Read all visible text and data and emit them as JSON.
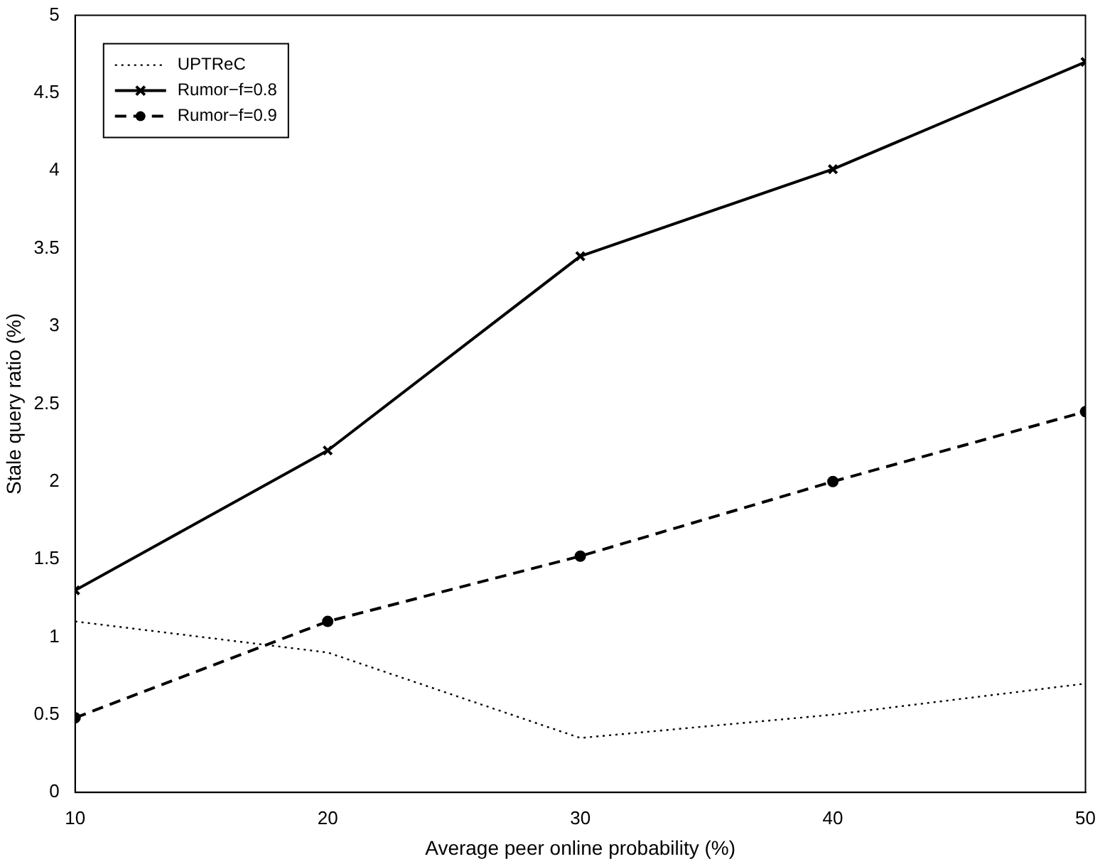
{
  "chart_data": {
    "type": "line",
    "xlabel": "Average peer online probability (%)",
    "ylabel": "Stale query ratio (%)",
    "x": [
      10,
      20,
      30,
      40,
      50
    ],
    "series": [
      {
        "name": "UPTReC",
        "color": "#000000",
        "values": [
          1.1,
          0.9,
          0.35,
          0.5,
          0.7
        ],
        "marker": "none",
        "line_style": "dotted"
      },
      {
        "name": "Rumor−f=0.8",
        "color": "#000000",
        "values": [
          1.3,
          2.2,
          3.45,
          4.01,
          4.7
        ],
        "marker": "cross",
        "line_style": "solid"
      },
      {
        "name": "Rumor−f=0.9",
        "color": "#000000",
        "values": [
          0.48,
          1.1,
          1.52,
          2.0,
          2.45
        ],
        "marker": "circle",
        "line_style": "dashed"
      }
    ],
    "xlim": [
      10,
      50
    ],
    "xticks": [
      10,
      20,
      30,
      40,
      50
    ],
    "ylim": [
      0,
      5
    ],
    "yticks": [
      0,
      0.5,
      1,
      1.5,
      2,
      2.5,
      3,
      3.5,
      4,
      4.5,
      5
    ],
    "grid": false,
    "legend": "top left"
  }
}
